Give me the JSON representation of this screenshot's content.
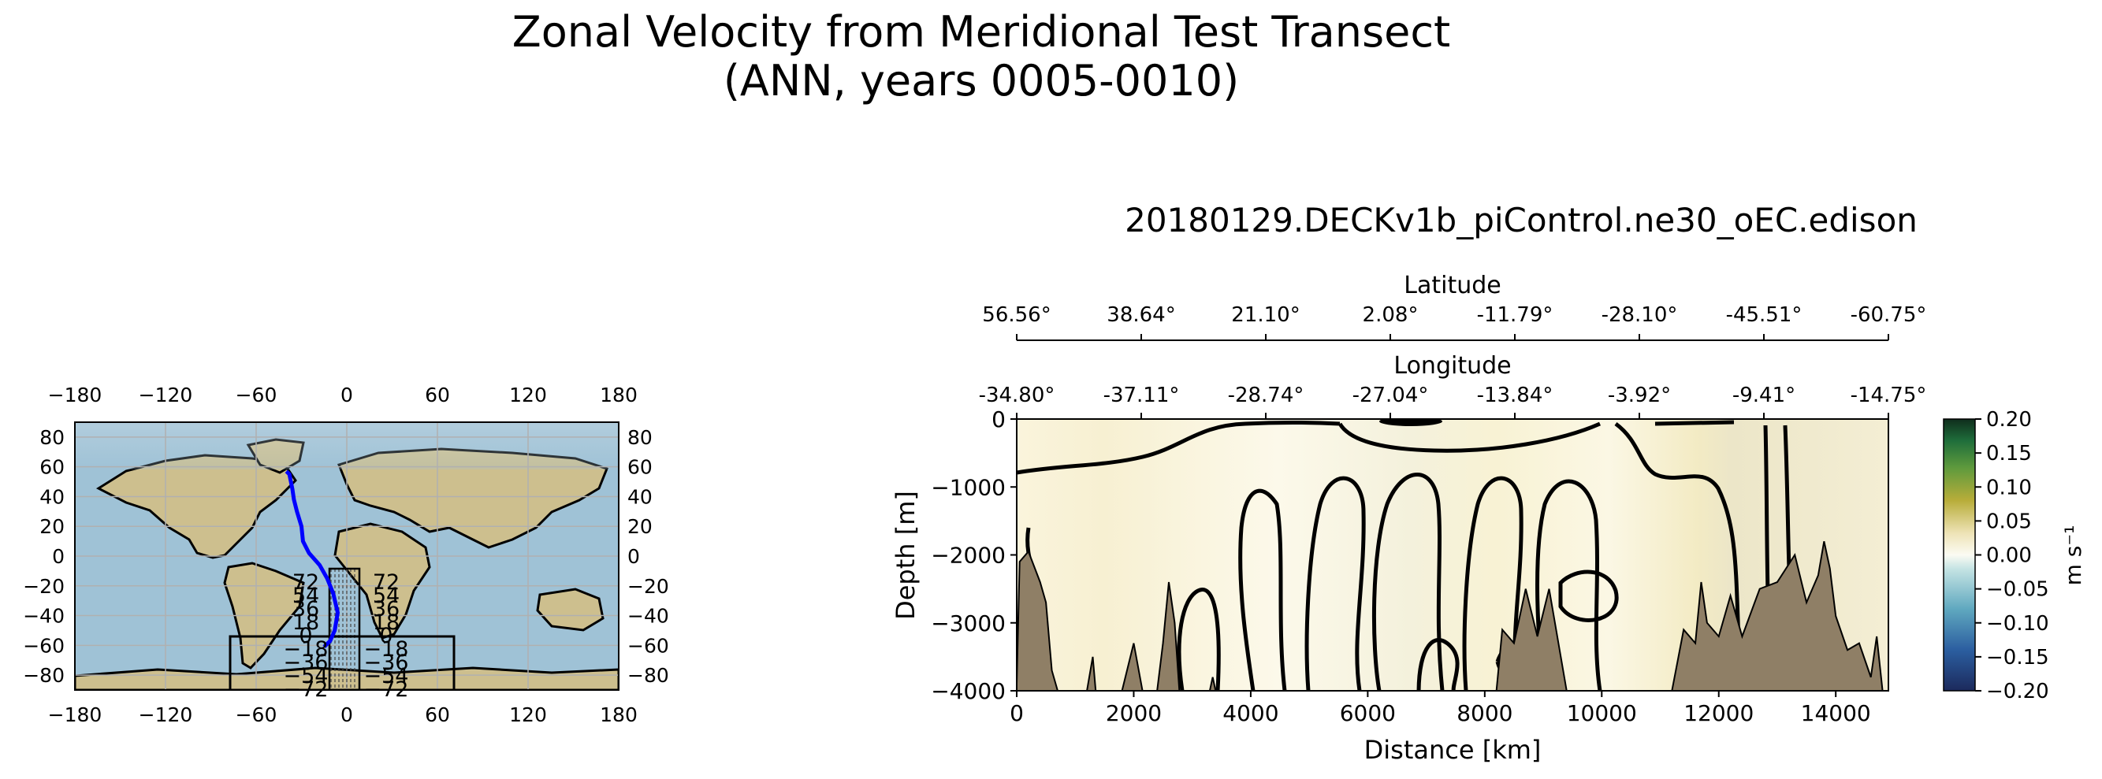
{
  "figure": {
    "title_line1": "Zonal Velocity from Meridional Test Transect",
    "title_line2": "(ANN, years 0005-0010)",
    "run_name": "20180129.DECKv1b_piControl.ne30_oEC.edison"
  },
  "colors": {
    "ocean": "#9fc2d6",
    "land": "#cdbf8e",
    "bathymetry": "#8f7f66",
    "transect": "#0000ff",
    "grid": "#b0b0b0"
  },
  "chart_data": [
    {
      "type": "map",
      "name": "transect-location-map",
      "x_ticks_top": [
        "−180",
        "−120",
        "−60",
        "0",
        "60",
        "120",
        "180"
      ],
      "x_ticks_bottom": [
        "−180",
        "−120",
        "−60",
        "0",
        "60",
        "120",
        "180"
      ],
      "y_ticks_left": [
        "80",
        "60",
        "40",
        "20",
        "0",
        "−20",
        "−40",
        "−60",
        "−80"
      ],
      "y_ticks_right": [
        "80",
        "60",
        "40",
        "20",
        "0",
        "−20",
        "−40",
        "−60",
        "−80"
      ],
      "xlim": [
        -180,
        180
      ],
      "ylim": [
        -90,
        90
      ],
      "overlap_labels": [
        "72",
        "54",
        "36",
        "18",
        "0",
        "−18",
        "−36",
        "−54",
        "−72"
      ],
      "transect_lonlat": [
        [
          -40,
          57
        ],
        [
          -38,
          55
        ],
        [
          -36,
          45
        ],
        [
          -35,
          38
        ],
        [
          -33,
          30
        ],
        [
          -30,
          20
        ],
        [
          -29,
          10
        ],
        [
          -25,
          2
        ],
        [
          -18,
          -6
        ],
        [
          -13,
          -15
        ],
        [
          -9,
          -25
        ],
        [
          -6,
          -38
        ],
        [
          -8,
          -50
        ],
        [
          -11,
          -57
        ],
        [
          -15,
          -61
        ]
      ]
    },
    {
      "type": "heatmap",
      "name": "zonal-velocity-section",
      "xlabel": "Distance [km]",
      "ylabel": "Depth [m]",
      "xlim": [
        0,
        14900
      ],
      "ylim": [
        -4000,
        0
      ],
      "x_ticks": [
        "0",
        "2000",
        "4000",
        "6000",
        "8000",
        "10000",
        "12000",
        "14000"
      ],
      "x_tick_values": [
        0,
        2000,
        4000,
        6000,
        8000,
        10000,
        12000,
        14000
      ],
      "y_ticks": [
        "0",
        "−1000",
        "−2000",
        "−3000",
        "−4000"
      ],
      "y_tick_values": [
        0,
        -1000,
        -2000,
        -3000,
        -4000
      ],
      "top_axis_1_label": "Latitude",
      "latitude_ticks": [
        "56.56°",
        "38.64°",
        "21.10°",
        "2.08°",
        "-11.79°",
        "-28.10°",
        "-45.51°",
        "-60.75°"
      ],
      "top_axis_2_label": "Longitude",
      "longitude_ticks": [
        "-34.80°",
        "-37.11°",
        "-28.74°",
        "-27.04°",
        "-13.84°",
        "-3.92°",
        "-9.41°",
        "-14.75°"
      ],
      "colorbar_label": "m s⁻¹",
      "colorbar_ticks": [
        "0.20",
        "0.15",
        "0.10",
        "0.05",
        "0.00",
        "−0.05",
        "−0.10",
        "−0.15",
        "−0.20"
      ],
      "colorbar_tick_values": [
        0.2,
        0.15,
        0.1,
        0.05,
        0.0,
        -0.05,
        -0.1,
        -0.15,
        -0.2
      ],
      "clim": [
        -0.2,
        0.2
      ],
      "bathymetry_profile": [
        [
          0,
          -3900
        ],
        [
          50,
          -2100
        ],
        [
          200,
          -1950
        ],
        [
          400,
          -2400
        ],
        [
          500,
          -2700
        ],
        [
          600,
          -3700
        ],
        [
          700,
          -4000
        ],
        [
          1200,
          -4000
        ],
        [
          1300,
          -3500
        ],
        [
          1350,
          -4000
        ],
        [
          1800,
          -4000
        ],
        [
          2000,
          -3300
        ],
        [
          2150,
          -4000
        ],
        [
          2400,
          -4000
        ],
        [
          2500,
          -3300
        ],
        [
          2600,
          -2400
        ],
        [
          2700,
          -3000
        ],
        [
          2780,
          -4000
        ],
        [
          3300,
          -4000
        ],
        [
          3350,
          -3800
        ],
        [
          3400,
          -4000
        ],
        [
          8200,
          -4000
        ],
        [
          8300,
          -3100
        ],
        [
          8500,
          -3300
        ],
        [
          8700,
          -2500
        ],
        [
          8900,
          -3200
        ],
        [
          9100,
          -2500
        ],
        [
          9300,
          -3500
        ],
        [
          9400,
          -4000
        ],
        [
          11200,
          -4000
        ],
        [
          11400,
          -3100
        ],
        [
          11600,
          -3300
        ],
        [
          11700,
          -2400
        ],
        [
          11800,
          -3000
        ],
        [
          12000,
          -3200
        ],
        [
          12200,
          -2600
        ],
        [
          12400,
          -3200
        ],
        [
          12700,
          -2500
        ],
        [
          13000,
          -2400
        ],
        [
          13300,
          -2000
        ],
        [
          13500,
          -2700
        ],
        [
          13700,
          -2300
        ],
        [
          13800,
          -1800
        ],
        [
          13900,
          -2200
        ],
        [
          14000,
          -2900
        ],
        [
          14200,
          -3400
        ],
        [
          14400,
          -3300
        ],
        [
          14600,
          -3800
        ],
        [
          14700,
          -3200
        ],
        [
          14800,
          -4000
        ],
        [
          14900,
          -4000
        ]
      ]
    }
  ]
}
